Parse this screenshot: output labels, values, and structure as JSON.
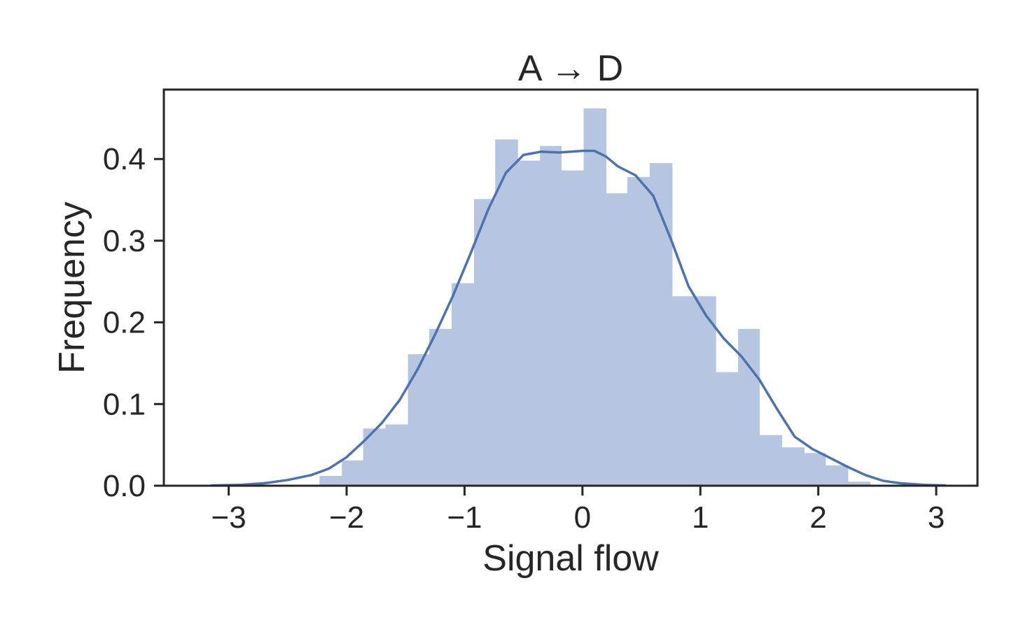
{
  "chart_data": {
    "type": "bar",
    "title": "A → D",
    "xlabel": "Signal flow",
    "ylabel": "Frequency",
    "xlim": [
      -3.55,
      3.35
    ],
    "ylim": [
      0.0,
      0.485
    ],
    "xticks": [
      -3,
      -2,
      -1,
      0,
      1,
      2,
      3
    ],
    "xtick_labels": [
      "−3",
      "−2",
      "−1",
      "0",
      "1",
      "2",
      "3"
    ],
    "yticks": [
      0.0,
      0.1,
      0.2,
      0.3,
      0.4
    ],
    "ytick_labels": [
      "0.0",
      "0.1",
      "0.2",
      "0.3",
      "0.4"
    ],
    "grid": false,
    "bar_color": "#b6c6e0",
    "line_color": "#4c72b0",
    "histogram": {
      "bin_edges": [
        -2.23,
        -2.04,
        -1.86,
        -1.67,
        -1.48,
        -1.3,
        -1.11,
        -0.92,
        -0.74,
        -0.55,
        -0.36,
        -0.18,
        0.01,
        0.2,
        0.38,
        0.57,
        0.76,
        0.94,
        1.13,
        1.32,
        1.5,
        1.69,
        1.88,
        2.06,
        2.25,
        2.44
      ],
      "heights": [
        0.012,
        0.031,
        0.07,
        0.075,
        0.161,
        0.192,
        0.248,
        0.351,
        0.424,
        0.398,
        0.416,
        0.386,
        0.462,
        0.358,
        0.378,
        0.395,
        0.232,
        0.232,
        0.139,
        0.192,
        0.062,
        0.047,
        0.04,
        0.025,
        0.005
      ]
    },
    "kde": {
      "x": [
        -3.15,
        -2.9,
        -2.7,
        -2.5,
        -2.3,
        -2.15,
        -2.0,
        -1.85,
        -1.7,
        -1.55,
        -1.4,
        -1.25,
        -1.1,
        -0.95,
        -0.8,
        -0.65,
        -0.5,
        -0.35,
        -0.2,
        -0.1,
        0.0,
        0.1,
        0.2,
        0.3,
        0.45,
        0.6,
        0.75,
        0.9,
        1.05,
        1.2,
        1.35,
        1.5,
        1.65,
        1.8,
        1.95,
        2.1,
        2.25,
        2.4,
        2.55,
        2.7,
        2.9,
        3.08
      ],
      "y": [
        0.0003,
        0.001,
        0.003,
        0.007,
        0.013,
        0.021,
        0.035,
        0.055,
        0.077,
        0.105,
        0.142,
        0.185,
        0.232,
        0.284,
        0.338,
        0.383,
        0.405,
        0.409,
        0.408,
        0.409,
        0.41,
        0.41,
        0.403,
        0.391,
        0.38,
        0.355,
        0.302,
        0.244,
        0.208,
        0.18,
        0.158,
        0.13,
        0.094,
        0.06,
        0.045,
        0.034,
        0.023,
        0.013,
        0.006,
        0.003,
        0.001,
        0.0003
      ]
    }
  }
}
